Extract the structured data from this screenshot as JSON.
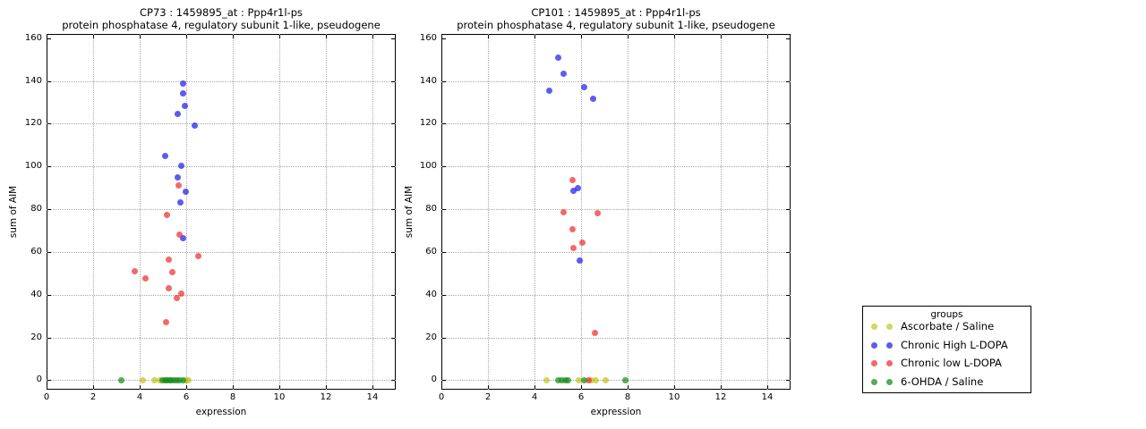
{
  "legend": {
    "title": "groups",
    "items": [
      {
        "label": "Ascorbate / Saline",
        "color": "rgba(189,189,10,0.65)"
      },
      {
        "label": "Chronic High L-DOPA",
        "color": "rgba(5,5,235,0.65)"
      },
      {
        "label": "Chronic low L-DOPA",
        "color": "rgba(235,25,25,0.65)"
      },
      {
        "label": "6-OHDA / Saline",
        "color": "rgba(20,140,20,0.72)"
      }
    ]
  },
  "chart_data": [
    {
      "type": "scatter",
      "title": "CP73 : 1459895_at : Ppp4r1l-ps",
      "subtitle": "protein phosphatase 4, regulatory subunit 1-like, pseudogene",
      "xlabel": "expression",
      "ylabel": "sum of AIM",
      "xlim": [
        0,
        15
      ],
      "ylim": [
        -4.4,
        162
      ],
      "xticks": [
        0,
        2,
        4,
        6,
        8,
        10,
        12,
        14
      ],
      "yticks": [
        0,
        20,
        40,
        60,
        80,
        100,
        120,
        140,
        160
      ],
      "grid": true,
      "legend_position": "outside-right",
      "series": [
        {
          "name": "Ascorbate / Saline",
          "color": "rgba(189,189,10,0.65)",
          "points": [
            [
              4.13,
              0
            ],
            [
              4.64,
              0
            ],
            [
              4.85,
              0
            ],
            [
              5.98,
              0
            ],
            [
              6.08,
              0
            ]
          ]
        },
        {
          "name": "Chronic High L-DOPA",
          "color": "rgba(5,5,235,0.65)",
          "points": [
            [
              5.88,
              139
            ],
            [
              5.86,
              134
            ],
            [
              5.95,
              128.5
            ],
            [
              5.63,
              124.5
            ],
            [
              6.37,
              119
            ],
            [
              5.09,
              105
            ],
            [
              5.78,
              100.5
            ],
            [
              5.63,
              95
            ],
            [
              5.97,
              88
            ],
            [
              5.76,
              83
            ],
            [
              5.85,
              66.5
            ]
          ]
        },
        {
          "name": "Chronic low L-DOPA",
          "color": "rgba(235,25,25,0.65)",
          "points": [
            [
              5.69,
              91
            ],
            [
              5.18,
              77.5
            ],
            [
              5.7,
              68
            ],
            [
              5.24,
              56.5
            ],
            [
              6.5,
              58
            ],
            [
              3.77,
              51
            ],
            [
              5.41,
              50.5
            ],
            [
              4.26,
              47.5
            ],
            [
              5.26,
              43
            ],
            [
              5.8,
              40.5
            ],
            [
              5.58,
              38.5
            ],
            [
              5.13,
              27
            ]
          ]
        },
        {
          "name": "6-OHDA / Saline",
          "color": "rgba(20,140,20,0.72)",
          "points": [
            [
              3.23,
              0
            ],
            [
              4.97,
              0
            ],
            [
              5.08,
              0
            ],
            [
              5.18,
              0
            ],
            [
              5.28,
              0
            ],
            [
              5.38,
              0
            ],
            [
              5.48,
              0
            ],
            [
              5.58,
              0
            ],
            [
              5.7,
              0
            ],
            [
              5.85,
              0
            ]
          ]
        }
      ]
    },
    {
      "type": "scatter",
      "title": "CP101 : 1459895_at : Ppp4r1l-ps",
      "subtitle": "protein phosphatase 4, regulatory subunit 1-like, pseudogene",
      "xlabel": "expression",
      "ylabel": "sum of AIM",
      "xlim": [
        0,
        15
      ],
      "ylim": [
        -4.4,
        162
      ],
      "xticks": [
        0,
        2,
        4,
        6,
        8,
        10,
        12,
        14
      ],
      "yticks": [
        0,
        20,
        40,
        60,
        80,
        100,
        120,
        140,
        160
      ],
      "grid": true,
      "legend_position": "outside-right",
      "series": [
        {
          "name": "Ascorbate / Saline",
          "color": "rgba(189,189,10,0.65)",
          "points": [
            [
              4.5,
              0
            ],
            [
              5.9,
              0
            ],
            [
              6.45,
              0
            ],
            [
              6.63,
              0
            ],
            [
              7.05,
              0
            ]
          ]
        },
        {
          "name": "Chronic High L-DOPA",
          "color": "rgba(5,5,235,0.65)",
          "points": [
            [
              5.03,
              151
            ],
            [
              5.24,
              143.5
            ],
            [
              4.64,
              135.5
            ],
            [
              6.12,
              137
            ],
            [
              6.51,
              131.5
            ],
            [
              5.88,
              90
            ],
            [
              5.68,
              88.5
            ],
            [
              5.96,
              56
            ]
          ]
        },
        {
          "name": "Chronic low L-DOPA",
          "color": "rgba(235,25,25,0.65)",
          "points": [
            [
              5.63,
              93.5
            ],
            [
              5.24,
              78.5
            ],
            [
              6.72,
              78
            ],
            [
              5.63,
              70.5
            ],
            [
              6.04,
              64.5
            ],
            [
              5.68,
              62
            ],
            [
              6.59,
              22
            ],
            [
              6.32,
              0
            ]
          ]
        },
        {
          "name": "6-OHDA / Saline",
          "color": "rgba(20,140,20,0.72)",
          "points": [
            [
              5.03,
              0
            ],
            [
              5.18,
              0
            ],
            [
              5.32,
              0
            ],
            [
              5.45,
              0
            ],
            [
              6.15,
              0
            ],
            [
              7.9,
              0
            ]
          ]
        }
      ]
    }
  ]
}
